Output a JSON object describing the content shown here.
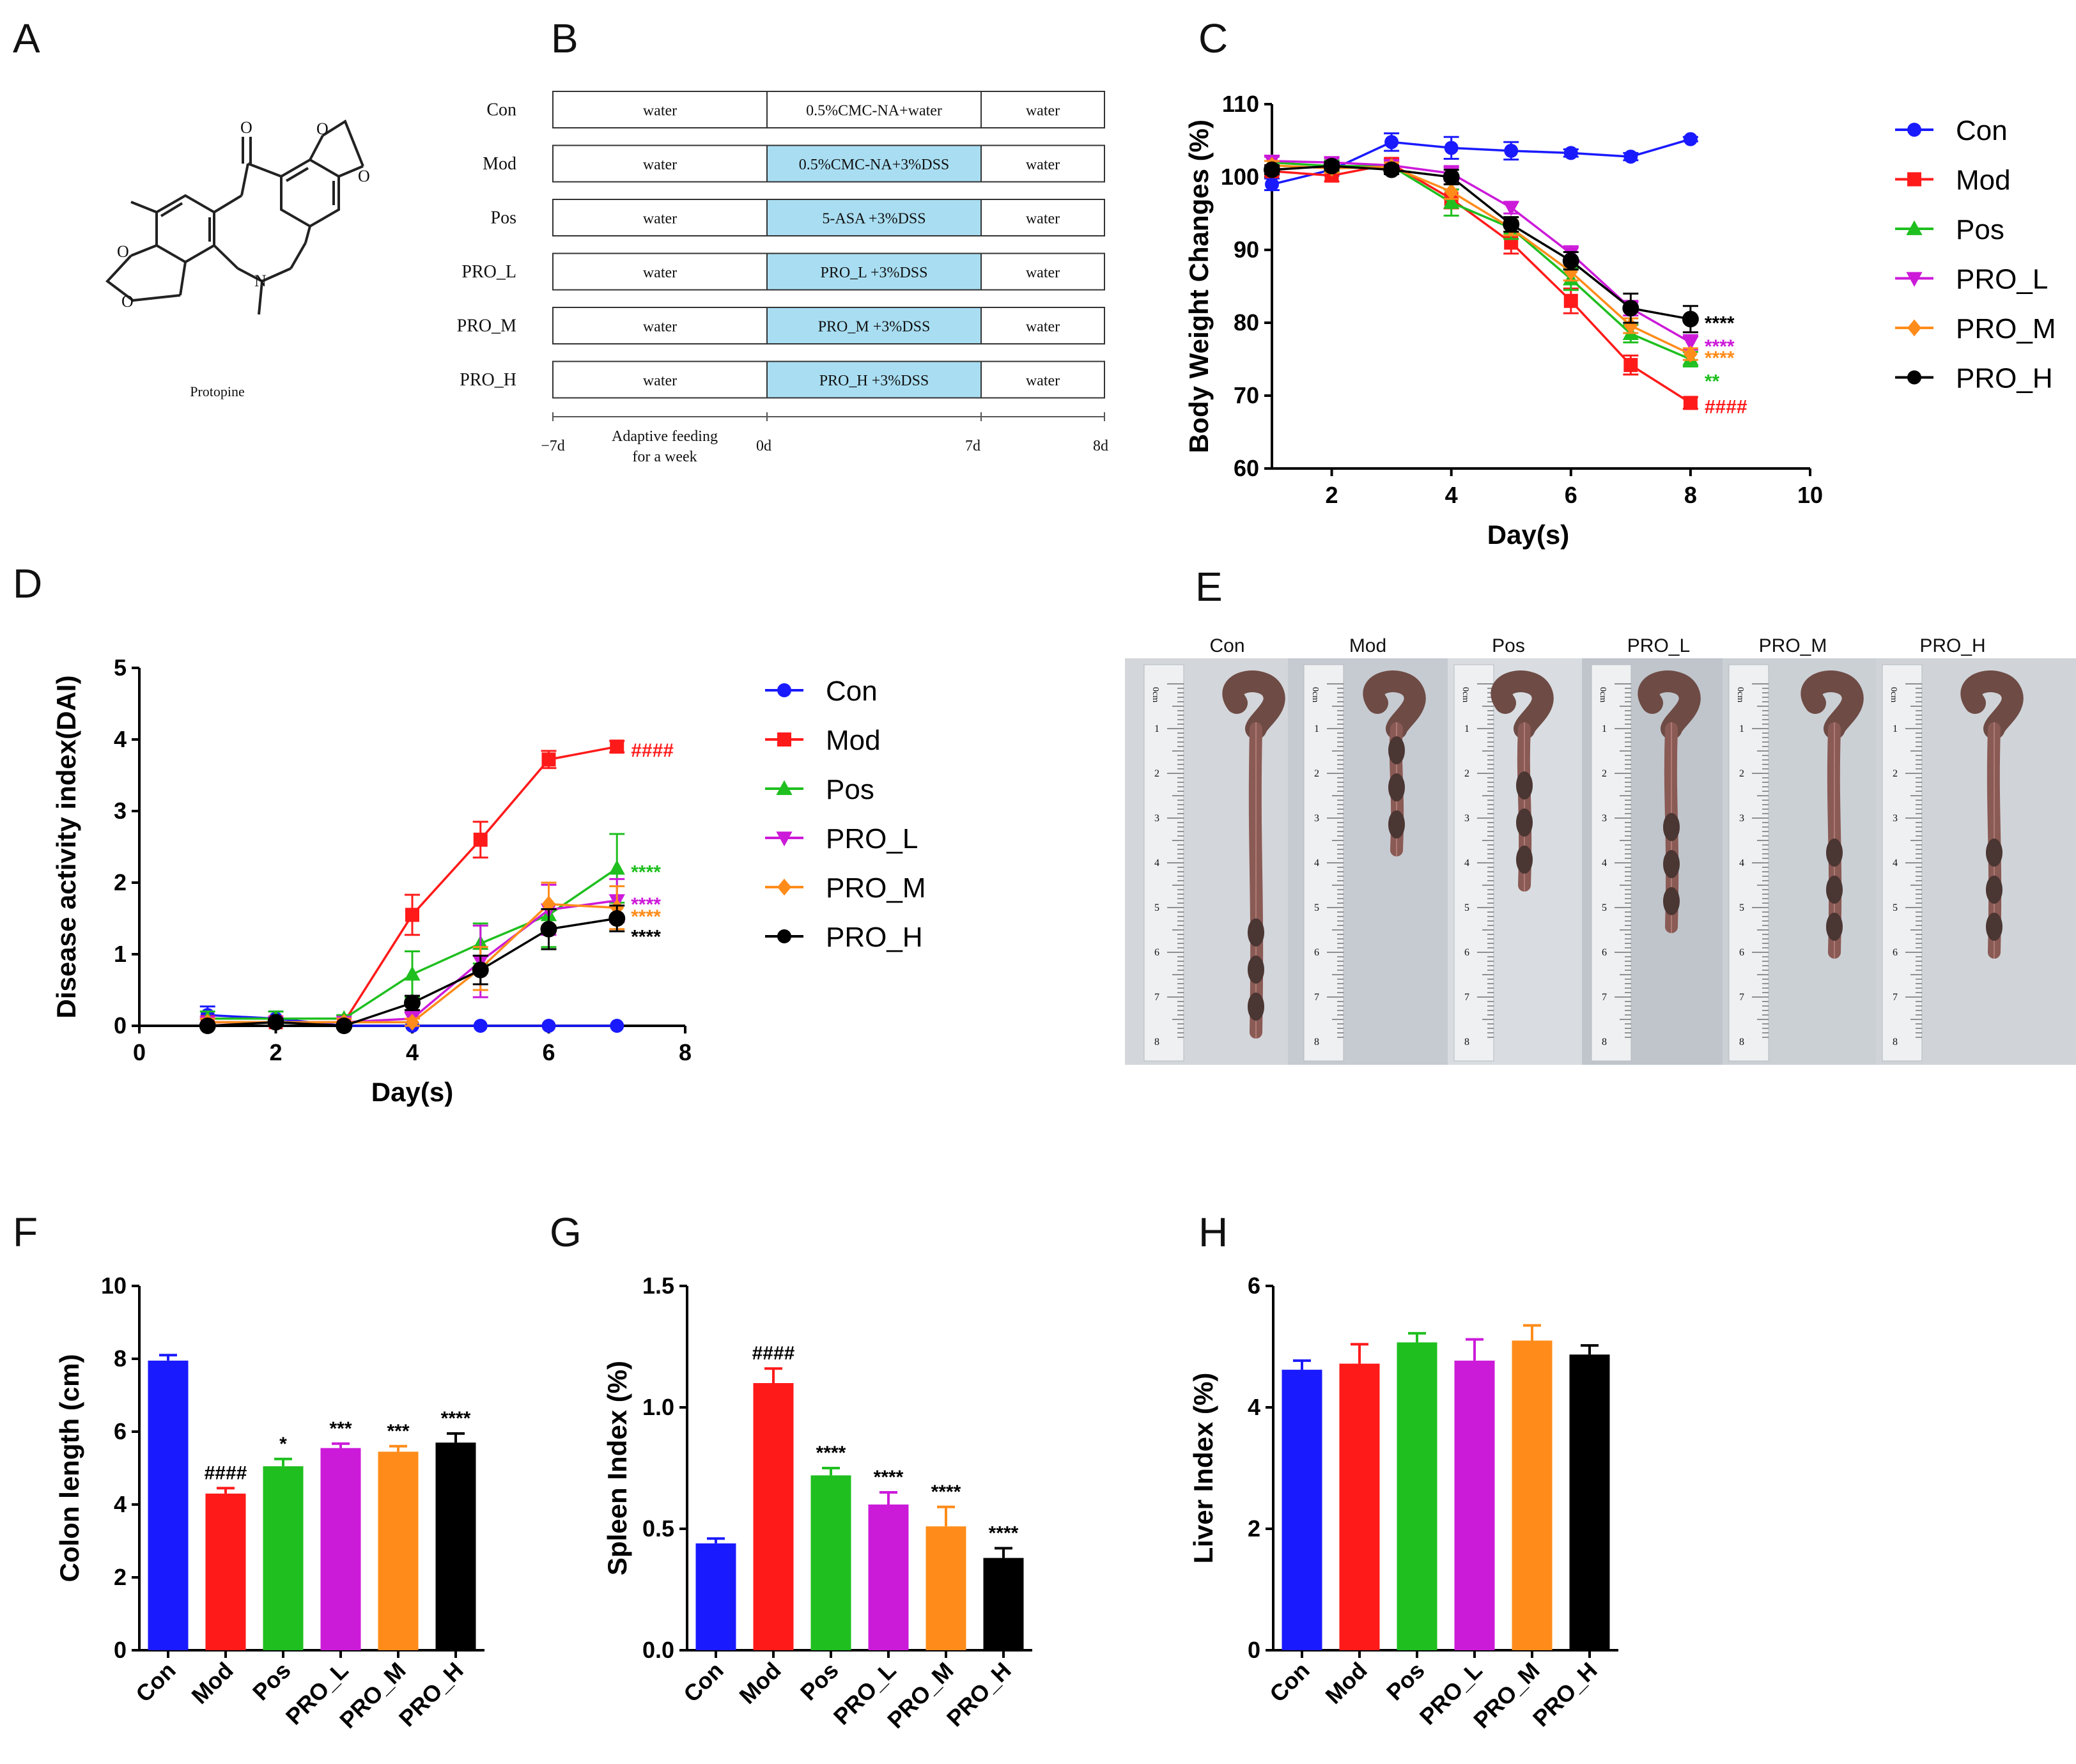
{
  "colors": {
    "Con": "#1a1aff",
    "Mod": "#ff1a1a",
    "Pos": "#1fbf1f",
    "PRO_L": "#cc1ad9",
    "PRO_M": "#ff8c1a",
    "PRO_H": "#000000"
  },
  "panelA": {
    "letter": "A",
    "compound": "Protopine"
  },
  "panelB": {
    "letter": "B",
    "rows": [
      {
        "label": "Con",
        "c1": "water",
        "c2": "0.5%CMC-NA+water",
        "c3": "water",
        "highlight": false
      },
      {
        "label": "Mod",
        "c1": "water",
        "c2": "0.5%CMC-NA+3%DSS",
        "c3": "water",
        "highlight": true
      },
      {
        "label": "Pos",
        "c1": "water",
        "c2": "5-ASA +3%DSS",
        "c3": "water",
        "highlight": true
      },
      {
        "label": "PRO_L",
        "c1": "water",
        "c2": "PRO_L +3%DSS",
        "c3": "water",
        "highlight": true
      },
      {
        "label": "PRO_M",
        "c1": "water",
        "c2": "PRO_M +3%DSS",
        "c3": "water",
        "highlight": true
      },
      {
        "label": "PRO_H",
        "c1": "water",
        "c2": "PRO_H +3%DSS",
        "c3": "water",
        "highlight": true
      }
    ],
    "timeline": {
      "t0": "−7d",
      "t1": "0d",
      "t2": "7d",
      "t3": "8d",
      "note1": "Adaptive feeding",
      "note2": "for a week"
    }
  },
  "panelE": {
    "letter": "E",
    "labels": [
      "Con",
      "Mod",
      "Pos",
      "PRO_L",
      "PRO_M",
      "PRO_H"
    ],
    "ruler_unit": "0cm",
    "ruler_numbers": [
      "1",
      "2",
      "3",
      "4",
      "5",
      "6",
      "7",
      "8"
    ]
  },
  "chart_data": [
    {
      "panel": "C",
      "type": "line",
      "xlabel": "Day(s)",
      "ylabel": "Body Weight Changes (%)",
      "xlim": [
        1,
        10
      ],
      "ylim": [
        60,
        110
      ],
      "xticks": [
        2,
        4,
        6,
        8,
        10
      ],
      "yticks": [
        60,
        70,
        80,
        90,
        100,
        110
      ],
      "legend": [
        "Con",
        "Mod",
        "Pos",
        "PRO_L",
        "PRO_M",
        "PRO_H"
      ],
      "series": [
        {
          "name": "Con",
          "x": [
            1,
            2,
            3,
            4,
            5,
            6,
            7,
            8
          ],
          "values": [
            99,
            101,
            104.8,
            104,
            103.6,
            103.3,
            102.8,
            105.2
          ],
          "err": [
            0.8,
            0.8,
            1.2,
            1.5,
            1.2,
            0.5,
            0.5,
            0.3
          ],
          "marker": "circle"
        },
        {
          "name": "Mod",
          "x": [
            1,
            2,
            3,
            4,
            5,
            6,
            7,
            8
          ],
          "values": [
            100.8,
            100.2,
            101.8,
            97,
            91,
            83,
            74.2,
            69
          ],
          "err": [
            0.6,
            0.8,
            0.8,
            1.3,
            1.5,
            1.7,
            1.3,
            0.8
          ],
          "marker": "square"
        },
        {
          "name": "Pos",
          "x": [
            1,
            2,
            3,
            4,
            5,
            6,
            7,
            8
          ],
          "values": [
            102,
            101.5,
            101.5,
            96.5,
            93,
            86,
            78.5,
            75
          ],
          "err": [
            0.8,
            0.8,
            0.6,
            1.8,
            1.5,
            1.5,
            1.2,
            1
          ],
          "marker": "triangle-up"
        },
        {
          "name": "PRO_L",
          "x": [
            1,
            2,
            3,
            4,
            5,
            6,
            7,
            8
          ],
          "values": [
            102.2,
            102,
            101.6,
            100.5,
            95.8,
            89.5,
            82,
            77.3
          ],
          "err": [
            0.6,
            0.6,
            0.6,
            1,
            0.8,
            1,
            1,
            1
          ],
          "marker": "triangle-down"
        },
        {
          "name": "PRO_M",
          "x": [
            1,
            2,
            3,
            4,
            5,
            6,
            7,
            8
          ],
          "values": [
            101.6,
            101.2,
            101.4,
            98,
            93,
            87,
            79.6,
            75.7
          ],
          "err": [
            0.6,
            0.6,
            0.6,
            1,
            1,
            1.2,
            1,
            0.8
          ],
          "marker": "diamond"
        },
        {
          "name": "PRO_H",
          "x": [
            1,
            2,
            3,
            4,
            5,
            6,
            7,
            8
          ],
          "values": [
            101,
            101.5,
            101,
            100,
            93.5,
            88.5,
            82,
            80.5
          ],
          "err": [
            0.6,
            0.6,
            0.6,
            1,
            1,
            1.2,
            2,
            1.8
          ],
          "marker": "circle"
        }
      ],
      "annotations": [
        {
          "series": "PRO_H",
          "y": 80.5,
          "text": "****"
        },
        {
          "series": "PRO_L",
          "y": 77.3,
          "text": "****"
        },
        {
          "series": "PRO_M",
          "y": 75.7,
          "text": "****"
        },
        {
          "series": "Pos",
          "y": 72.5,
          "text": "**"
        },
        {
          "series": "Mod",
          "y": 69,
          "text": "####"
        }
      ]
    },
    {
      "panel": "D",
      "type": "line",
      "xlabel": "Day(s)",
      "ylabel": "Disease activity index(DAI)",
      "xlim": [
        0,
        8
      ],
      "ylim": [
        0,
        5
      ],
      "xticks": [
        0,
        2,
        4,
        6,
        8
      ],
      "yticks": [
        0,
        1,
        2,
        3,
        4,
        5
      ],
      "legend": [
        "Con",
        "Mod",
        "Pos",
        "PRO_L",
        "PRO_M",
        "PRO_H"
      ],
      "series": [
        {
          "name": "Con",
          "x": [
            1,
            2,
            3,
            4,
            5,
            6,
            7
          ],
          "values": [
            0.15,
            0.1,
            0,
            0,
            0,
            0,
            0
          ],
          "err": [
            0.12,
            0.1,
            0,
            0,
            0,
            0,
            0
          ],
          "marker": "circle"
        },
        {
          "name": "Mod",
          "x": [
            1,
            2,
            3,
            4,
            5,
            6,
            7
          ],
          "values": [
            0.05,
            0.05,
            0.05,
            1.55,
            2.6,
            3.72,
            3.9
          ],
          "err": [
            0.05,
            0.05,
            0.05,
            0.28,
            0.25,
            0.12,
            0.08
          ],
          "marker": "square"
        },
        {
          "name": "Pos",
          "x": [
            1,
            2,
            3,
            4,
            5,
            6,
            7
          ],
          "values": [
            0.1,
            0.1,
            0.1,
            0.72,
            1.15,
            1.55,
            2.2
          ],
          "err": [
            0.1,
            0.1,
            0.05,
            0.32,
            0.28,
            0.45,
            0.48
          ],
          "marker": "triangle-up"
        },
        {
          "name": "PRO_L",
          "x": [
            1,
            2,
            3,
            4,
            5,
            6,
            7
          ],
          "values": [
            0.05,
            0.05,
            0.05,
            0.1,
            0.9,
            1.62,
            1.75
          ],
          "err": [
            0.05,
            0.05,
            0.05,
            0.1,
            0.5,
            0.35,
            0.3
          ],
          "marker": "triangle-down"
        },
        {
          "name": "PRO_M",
          "x": [
            1,
            2,
            3,
            4,
            5,
            6,
            7
          ],
          "values": [
            0.05,
            0.05,
            0.05,
            0.05,
            0.8,
            1.7,
            1.65
          ],
          "err": [
            0.05,
            0.05,
            0.05,
            0.05,
            0.3,
            0.3,
            0.3
          ],
          "marker": "diamond"
        },
        {
          "name": "PRO_H",
          "x": [
            1,
            2,
            3,
            4,
            5,
            6,
            7
          ],
          "values": [
            0,
            0.05,
            0,
            0.32,
            0.78,
            1.35,
            1.5
          ],
          "err": [
            0,
            0.05,
            0,
            0.1,
            0.2,
            0.28,
            0.18
          ],
          "marker": "circle"
        }
      ],
      "annotations": [
        {
          "series": "Mod",
          "y": 3.9,
          "text": "####"
        },
        {
          "series": "Pos",
          "y": 2.2,
          "text": "****"
        },
        {
          "series": "PRO_L",
          "y": 1.75,
          "text": "****"
        },
        {
          "series": "PRO_M",
          "y": 1.58,
          "text": "****"
        },
        {
          "series": "PRO_H",
          "y": 1.3,
          "text": "****"
        }
      ]
    },
    {
      "panel": "F",
      "type": "bar",
      "ylabel": "Colon length (cm)",
      "ylim": [
        0,
        10
      ],
      "yticks": [
        0,
        2,
        4,
        6,
        8,
        10
      ],
      "categories": [
        "Con",
        "Mod",
        "Pos",
        "PRO_L",
        "PRO_M",
        "PRO_H"
      ],
      "values": [
        7.95,
        4.3,
        5.05,
        5.55,
        5.45,
        5.7
      ],
      "err": [
        0.15,
        0.15,
        0.2,
        0.12,
        0.15,
        0.25
      ],
      "annotations": [
        "",
        "####",
        "*",
        "***",
        "***",
        "****"
      ]
    },
    {
      "panel": "G",
      "type": "bar",
      "ylabel": "Spleen Index (%)",
      "ylim": [
        0,
        1.5
      ],
      "yticks": [
        0.0,
        0.5,
        1.0,
        1.5
      ],
      "yticklabels": [
        "0.0",
        "0.5",
        "1.0",
        "1.5"
      ],
      "categories": [
        "Con",
        "Mod",
        "Pos",
        "PRO_L",
        "PRO_M",
        "PRO_H"
      ],
      "values": [
        0.44,
        1.1,
        0.72,
        0.6,
        0.51,
        0.38
      ],
      "err": [
        0.02,
        0.06,
        0.03,
        0.05,
        0.08,
        0.04
      ],
      "annotations": [
        "",
        "####",
        "****",
        "****",
        "****",
        "****"
      ]
    },
    {
      "panel": "H",
      "type": "bar",
      "ylabel": "Liver Index (%)",
      "ylim": [
        0,
        6
      ],
      "yticks": [
        0,
        2,
        4,
        6
      ],
      "categories": [
        "Con",
        "Mod",
        "Pos",
        "PRO_L",
        "PRO_M",
        "PRO_H"
      ],
      "values": [
        4.62,
        4.72,
        5.07,
        4.77,
        5.1,
        4.87
      ],
      "err": [
        0.15,
        0.32,
        0.15,
        0.35,
        0.25,
        0.15
      ],
      "annotations": [
        "",
        "",
        "",
        "",
        "",
        ""
      ]
    }
  ]
}
